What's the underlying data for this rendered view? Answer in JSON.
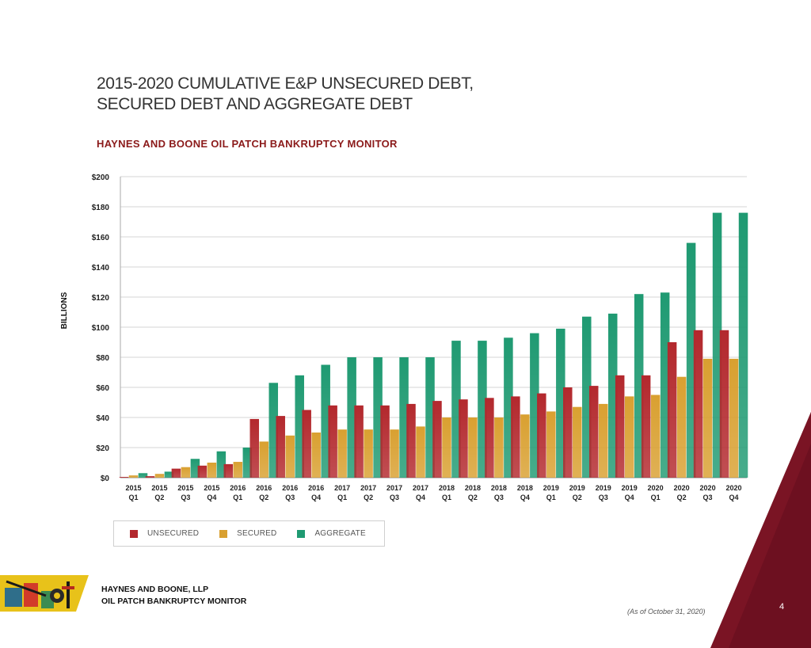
{
  "title": {
    "line1": "2015-2020 CUMULATIVE E&P UNSECURED DEBT,",
    "line2": "SECURED DEBT AND AGGREGATE DEBT"
  },
  "subtitle": "HAYNES AND BOONE OIL PATCH BANKRUPTCY MONITOR",
  "colors": {
    "unsecured": "#b3282d",
    "secured": "#d9a030",
    "aggregate": "#1f9a72",
    "accent": "#6d1020"
  },
  "footer": {
    "firm_line1": "HAYNES AND BOONE, LLP",
    "firm_line2": "OIL PATCH BANKRUPTCY MONITOR",
    "as_of": "(As of October 31, 2020)",
    "page_number": "4"
  },
  "chart_data": {
    "type": "bar",
    "ylabel": "BILLIONS",
    "ylim": [
      0,
      200
    ],
    "yticks": [
      0,
      20,
      40,
      60,
      80,
      100,
      120,
      140,
      160,
      180,
      200
    ],
    "ytick_labels": [
      "$0",
      "$20",
      "$40",
      "$60",
      "$80",
      "$100",
      "$120",
      "$140",
      "$160",
      "$180",
      "$200"
    ],
    "grid": true,
    "legend_position": "bottom-left",
    "categories": [
      [
        "2015",
        "Q1"
      ],
      [
        "2015",
        "Q2"
      ],
      [
        "2015",
        "Q3"
      ],
      [
        "2015",
        "Q4"
      ],
      [
        "2016",
        "Q1"
      ],
      [
        "2016",
        "Q2"
      ],
      [
        "2016",
        "Q3"
      ],
      [
        "2016",
        "Q4"
      ],
      [
        "2017",
        "Q1"
      ],
      [
        "2017",
        "Q2"
      ],
      [
        "2017",
        "Q3"
      ],
      [
        "2017",
        "Q4"
      ],
      [
        "2018",
        "Q1"
      ],
      [
        "2018",
        "Q2"
      ],
      [
        "2018",
        "Q3"
      ],
      [
        "2018",
        "Q4"
      ],
      [
        "2019",
        "Q1"
      ],
      [
        "2019",
        "Q2"
      ],
      [
        "2019",
        "Q3"
      ],
      [
        "2019",
        "Q4"
      ],
      [
        "2020",
        "Q1"
      ],
      [
        "2020",
        "Q2"
      ],
      [
        "2020",
        "Q3"
      ],
      [
        "2020",
        "Q4"
      ]
    ],
    "series": [
      {
        "name": "UNSECURED",
        "color": "#b3282d",
        "values": [
          0.5,
          1,
          6,
          8,
          9,
          39,
          41,
          45,
          48,
          48,
          48,
          49,
          51,
          52,
          53,
          54,
          56,
          60,
          61,
          68,
          68,
          90,
          98,
          98
        ]
      },
      {
        "name": "SECURED",
        "color": "#d9a030",
        "values": [
          1.5,
          2.5,
          7,
          10,
          10.5,
          24,
          28,
          30,
          32,
          32,
          32,
          34,
          40,
          40,
          40,
          42,
          44,
          47,
          49,
          54,
          55,
          67,
          79,
          79
        ]
      },
      {
        "name": "AGGREGATE",
        "color": "#1f9a72",
        "values": [
          3,
          4,
          12.5,
          17.5,
          20,
          63,
          68,
          75,
          80,
          80,
          80,
          80,
          91,
          91,
          93,
          96,
          99,
          107,
          109,
          122,
          123,
          156,
          176,
          176
        ]
      }
    ]
  }
}
